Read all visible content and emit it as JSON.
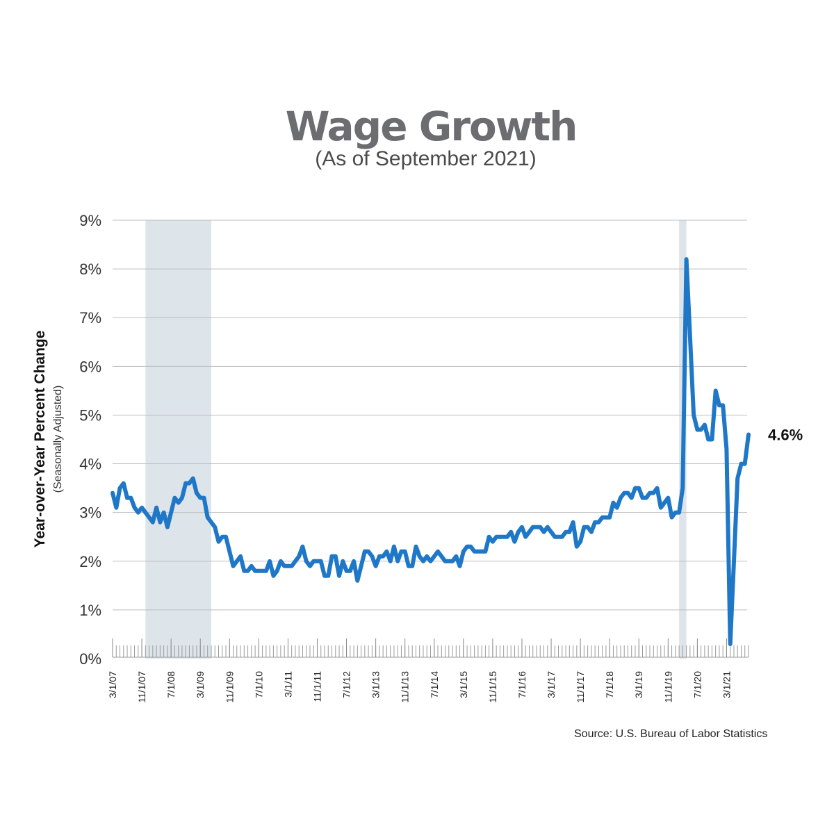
{
  "title": "Wage Growth",
  "subtitle": "(As of September 2021)",
  "source": "Source: U.S. Bureau of Labor Statistics",
  "chart_data": {
    "type": "line",
    "title": "Wage Growth",
    "subtitle": "(As of September 2021)",
    "ylabel": "Year-over-Year Percent Change",
    "ylabel_sub": "(Seasonally Adjusted)",
    "ylim": [
      0,
      9
    ],
    "y_ticks": [
      "0%",
      "1%",
      "2%",
      "3%",
      "4%",
      "5%",
      "6%",
      "7%",
      "8%",
      "9%"
    ],
    "x_ticks": [
      "3/1/07",
      "11/1/07",
      "7/1/08",
      "3/1/09",
      "11/1/09",
      "7/1/10",
      "3/1/11",
      "11/1/11",
      "7/1/12",
      "3/1/13",
      "11/1/13",
      "7/1/14",
      "3/1/15",
      "11/1/15",
      "7/1/16",
      "3/1/17",
      "11/1/17",
      "7/1/18",
      "3/1/19",
      "11/1/19",
      "7/1/20",
      "3/1/21"
    ],
    "grid": true,
    "line_color": "#1f77c8",
    "shade_color": "#dde4ea",
    "recessions": [
      [
        "12/1/07",
        "6/1/09"
      ],
      [
        "2/1/20",
        "4/1/20"
      ]
    ],
    "end_label": "4.6%",
    "series": [
      {
        "x_start": "3/1/07",
        "frequency": "monthly",
        "values": [
          3.4,
          3.1,
          3.5,
          3.6,
          3.3,
          3.3,
          3.1,
          3.0,
          3.1,
          3.0,
          2.9,
          2.8,
          3.1,
          2.8,
          3.0,
          2.7,
          3.0,
          3.3,
          3.2,
          3.3,
          3.6,
          3.6,
          3.7,
          3.4,
          3.3,
          3.3,
          2.9,
          2.8,
          2.7,
          2.4,
          2.5,
          2.5,
          2.2,
          1.9,
          2.0,
          2.1,
          1.8,
          1.8,
          1.9,
          1.8,
          1.8,
          1.8,
          1.8,
          2.0,
          1.7,
          1.8,
          2.0,
          1.9,
          1.9,
          1.9,
          2.0,
          2.1,
          2.3,
          2.0,
          1.9,
          2.0,
          2.0,
          2.0,
          1.7,
          1.7,
          2.1,
          2.1,
          1.7,
          2.0,
          1.8,
          1.8,
          2.0,
          1.6,
          1.9,
          2.2,
          2.2,
          2.1,
          1.9,
          2.1,
          2.1,
          2.2,
          2.0,
          2.3,
          2.0,
          2.2,
          2.2,
          1.9,
          1.9,
          2.3,
          2.1,
          2.0,
          2.1,
          2.0,
          2.1,
          2.2,
          2.1,
          2.0,
          2.0,
          2.0,
          2.1,
          1.9,
          2.2,
          2.3,
          2.3,
          2.2,
          2.2,
          2.2,
          2.2,
          2.5,
          2.4,
          2.5,
          2.5,
          2.5,
          2.5,
          2.6,
          2.4,
          2.6,
          2.7,
          2.5,
          2.6,
          2.7,
          2.7,
          2.7,
          2.6,
          2.7,
          2.6,
          2.5,
          2.5,
          2.5,
          2.6,
          2.6,
          2.8,
          2.3,
          2.4,
          2.7,
          2.7,
          2.6,
          2.8,
          2.8,
          2.9,
          2.9,
          2.9,
          3.2,
          3.1,
          3.3,
          3.4,
          3.4,
          3.3,
          3.5,
          3.5,
          3.3,
          3.3,
          3.4,
          3.4,
          3.5,
          3.1,
          3.2,
          3.3,
          2.9,
          3.0,
          3.0,
          3.5,
          8.2,
          6.6,
          5.0,
          4.7,
          4.7,
          4.8,
          4.5,
          4.5,
          5.5,
          5.2,
          5.2,
          4.3,
          0.3,
          2.0,
          3.7,
          4.0,
          4.0,
          4.6
        ]
      }
    ]
  }
}
